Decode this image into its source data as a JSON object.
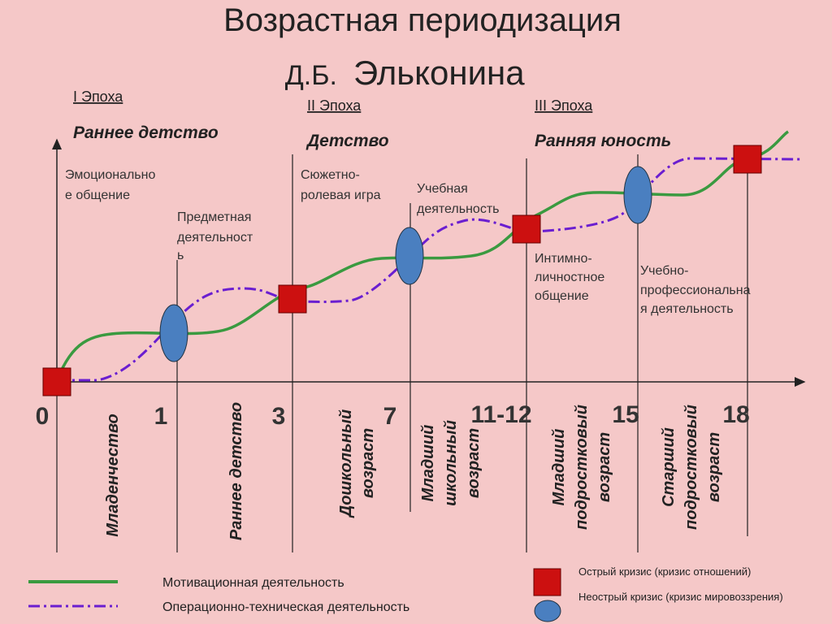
{
  "header": {
    "title": "Возрастная периодизация",
    "initials": "Д.Б.",
    "surname": "Эльконина"
  },
  "epochs": [
    {
      "label": "I Эпоха",
      "name": "Раннее детство"
    },
    {
      "label": "II Эпоха",
      "name": "Детство"
    },
    {
      "label": "III Эпоха",
      "name": "Ранняя юность"
    }
  ],
  "activities": [
    {
      "lines": [
        "Эмоционально",
        "е общение"
      ]
    },
    {
      "lines": [
        "Предметная",
        "деятельност",
        "ь"
      ]
    },
    {
      "lines": [
        "Сюжетно-",
        "ролевая игра"
      ]
    },
    {
      "lines": [
        "Учебная",
        "деятельность"
      ]
    },
    {
      "lines": [
        "Интимно-",
        "личностное",
        "общение"
      ]
    },
    {
      "lines": [
        "Учебно-",
        "профессиональна",
        "я деятельность"
      ]
    }
  ],
  "ages": [
    "0",
    "1",
    "3",
    "7",
    "11-12",
    "15",
    "18"
  ],
  "periods": [
    {
      "lines": [
        "Младенчество"
      ]
    },
    {
      "lines": [
        "Раннее детство"
      ]
    },
    {
      "lines": [
        "Дошкольный",
        "возраст"
      ]
    },
    {
      "lines": [
        "Младший",
        "школьный",
        "возраст"
      ]
    },
    {
      "lines": [
        "Младший",
        "подростковый",
        "возраст"
      ]
    },
    {
      "lines": [
        "Старший",
        "подростковый",
        "возраст"
      ]
    }
  ],
  "legend": {
    "motivational": "Мотивационная деятельность",
    "operational": "Операционно-техническая деятельность",
    "acute": "Острый кризис (кризис отношений)",
    "nonacute": "Неострый кризис (кризис мировоззрения)"
  }
}
